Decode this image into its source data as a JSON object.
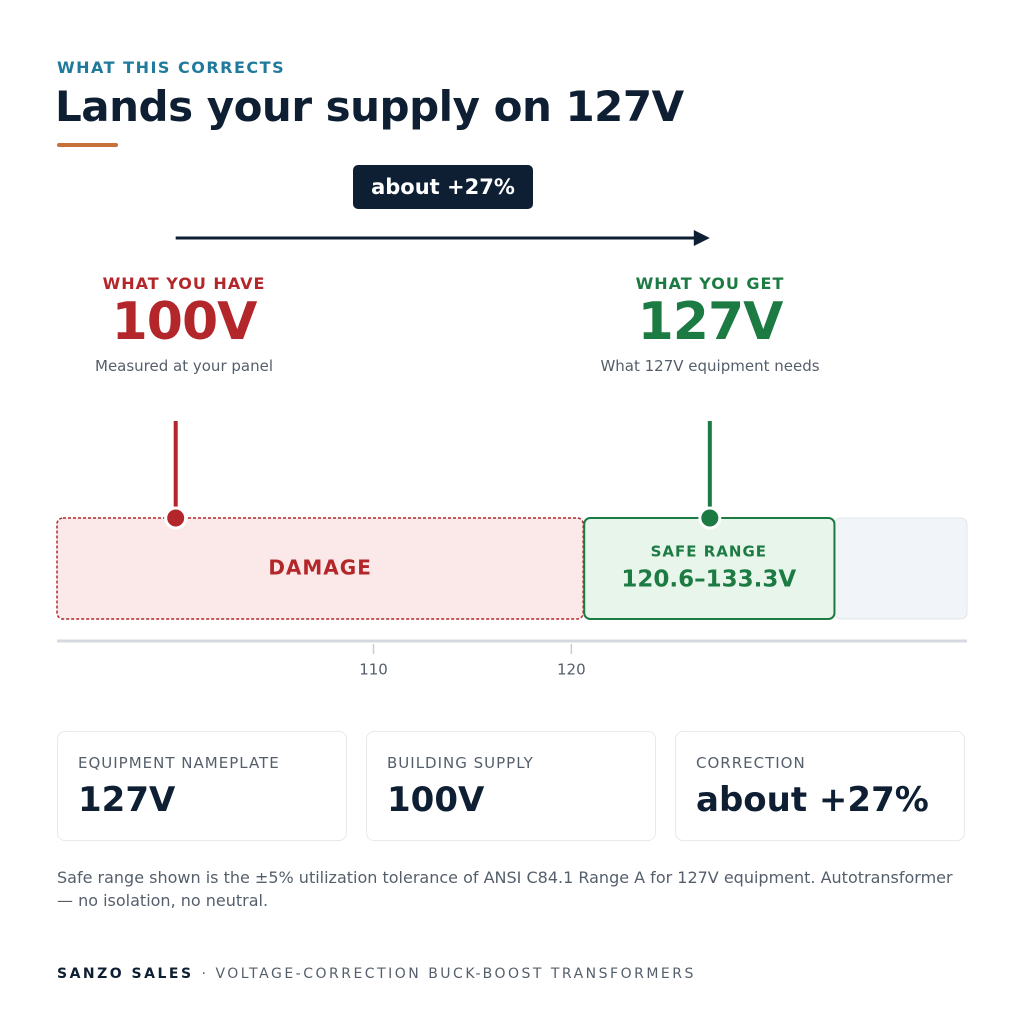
{
  "eyebrow": "WHAT THIS CORRECTS",
  "title": "Lands your supply on 127V",
  "badge": "about +27%",
  "have": {
    "label": "WHAT YOU HAVE",
    "value": "100V",
    "caption": "Measured at your panel"
  },
  "get": {
    "label": "WHAT YOU GET",
    "value": "127V",
    "caption": "What 127V equipment needs"
  },
  "scale": {
    "xlim": [
      94,
      140
    ],
    "ticks": [
      110,
      120
    ],
    "have": 100,
    "get": 127,
    "safe": [
      120.6,
      133.3
    ],
    "damage_label": "DAMAGE",
    "safe_label": "SAFE RANGE",
    "safe_text": "120.6–133.3V"
  },
  "cards": [
    {
      "label": "EQUIPMENT NAMEPLATE",
      "value": "127V"
    },
    {
      "label": "BUILDING SUPPLY",
      "value": "100V"
    },
    {
      "label": "CORRECTION",
      "value": "about +27%"
    }
  ],
  "footnote": "Safe range shown is the ±5% utilization tolerance of ANSI C84.1 Range A for 127V equipment. Autotransformer — no isolation, no neutral.",
  "footer": {
    "brand": "SANZO SALES",
    "tagline": "· VOLTAGE-CORRECTION BUCK-BOOST TRANSFORMERS"
  }
}
